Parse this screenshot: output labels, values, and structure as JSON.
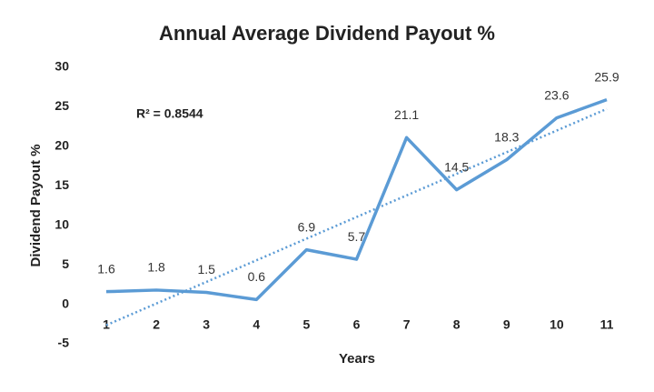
{
  "chart_data": {
    "type": "line",
    "title": "Annual Average Dividend Payout %",
    "x_label": "Years",
    "y_label": "Dividend Payout %",
    "categories": [
      "1",
      "2",
      "3",
      "4",
      "5",
      "6",
      "7",
      "8",
      "9",
      "10",
      "11"
    ],
    "values": [
      1.6,
      1.8,
      1.5,
      0.6,
      6.9,
      5.7,
      21.1,
      14.5,
      18.3,
      23.6,
      25.9
    ],
    "color": "#5b9bd5",
    "trendline": "linear",
    "annotation": "R² = 0.8544",
    "ylim": [
      -5,
      30
    ],
    "yticks": [
      -5,
      0,
      5,
      10,
      15,
      20,
      25,
      30
    ],
    "grid": false
  }
}
